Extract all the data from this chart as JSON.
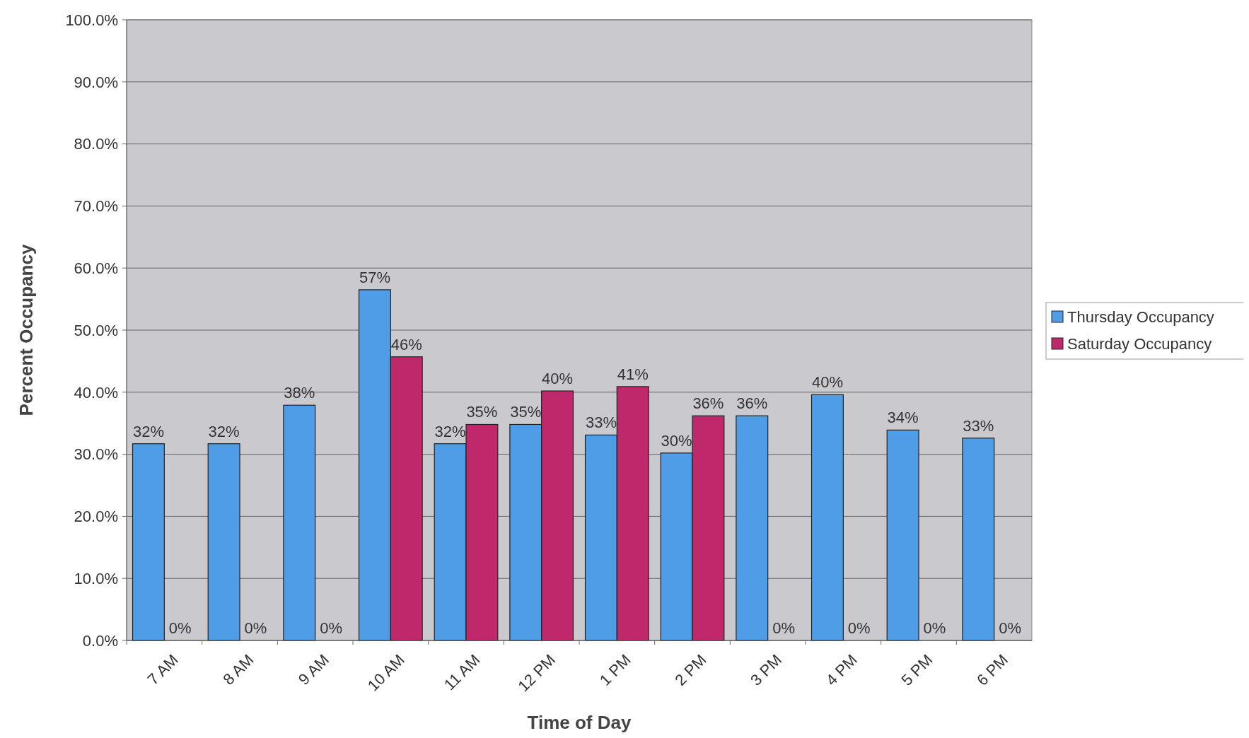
{
  "chart_data": {
    "type": "bar",
    "xlabel": "Time of Day",
    "ylabel": "Percent Occupancy",
    "categories": [
      "7 AM",
      "8 AM",
      "9 AM",
      "10 AM",
      "11 AM",
      "12 PM",
      "1 PM",
      "2 PM",
      "3 PM",
      "4 PM",
      "5 PM",
      "6 PM"
    ],
    "series": [
      {
        "name": "Thursday Occupancy",
        "color": "#4f9de6",
        "values": [
          31.7,
          31.7,
          37.9,
          56.5,
          31.7,
          34.8,
          33.1,
          30.2,
          36.2,
          39.6,
          33.9,
          32.6
        ],
        "value_labels": [
          "32%",
          "32%",
          "38%",
          "57%",
          "32%",
          "35%",
          "33%",
          "30%",
          "36%",
          "40%",
          "34%",
          "33%"
        ]
      },
      {
        "name": "Saturday Occupancy",
        "color": "#c0286c",
        "values": [
          0,
          0,
          0,
          45.7,
          34.8,
          40.2,
          40.9,
          36.2,
          0,
          0,
          0,
          0
        ],
        "value_labels": [
          "0%",
          "0%",
          "0%",
          "46%",
          "35%",
          "40%",
          "41%",
          "36%",
          "0%",
          "0%",
          "0%",
          "0%"
        ]
      }
    ],
    "ylim": [
      0,
      100
    ],
    "yticks": [
      {
        "value": 0,
        "label": "0.0%"
      },
      {
        "value": 10,
        "label": "10.0%"
      },
      {
        "value": 20,
        "label": "20.0%"
      },
      {
        "value": 30,
        "label": "30.0%"
      },
      {
        "value": 40,
        "label": "40.0%"
      },
      {
        "value": 50,
        "label": "50.0%"
      },
      {
        "value": 60,
        "label": "60.0%"
      },
      {
        "value": 70,
        "label": "70.0%"
      },
      {
        "value": 80,
        "label": "80.0%"
      },
      {
        "value": 90,
        "label": "90.0%"
      },
      {
        "value": 100,
        "label": "100.0%"
      }
    ],
    "grid": "y",
    "legend": "right"
  }
}
